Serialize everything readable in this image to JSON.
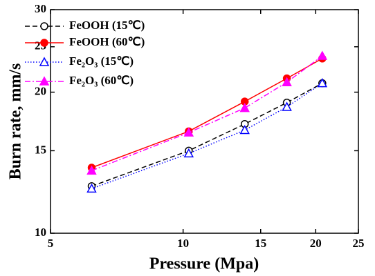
{
  "chart_data": {
    "type": "line",
    "x_label": "Pressure (Mpa)",
    "y_label": "Burn rate, mm/s",
    "x": [
      6.2,
      10.3,
      13.8,
      17.2,
      20.7
    ],
    "xlim": [
      5,
      25
    ],
    "xticks": [
      5,
      10,
      15,
      20,
      25
    ],
    "x_scale": "log",
    "ylim": [
      10,
      30
    ],
    "yticks": [
      10,
      15,
      20,
      25,
      30
    ],
    "y_scale": "log",
    "legend": "upper left",
    "series": [
      {
        "name": "FeOOH (15℃)",
        "color": "#000000",
        "line_style": "dashed",
        "marker": "open-circle",
        "values": [
          12.6,
          15.0,
          17.1,
          19.0,
          20.9
        ]
      },
      {
        "name": "FeOOH (60℃)",
        "color": "#ff0000",
        "line_style": "solid",
        "marker": "filled-circle",
        "values": [
          13.8,
          16.5,
          19.1,
          21.4,
          23.6
        ]
      },
      {
        "name": "Fe₂O₃ (15℃)",
        "color": "#0000ff",
        "line_style": "dotted",
        "marker": "open-triangle",
        "values": [
          12.45,
          14.8,
          16.6,
          18.6,
          20.9
        ]
      },
      {
        "name": "Fe₂O₃ (60℃)",
        "color": "#ff00ff",
        "line_style": "dashdot",
        "marker": "filled-triangle",
        "values": [
          13.6,
          16.4,
          18.5,
          21.0,
          23.9
        ]
      }
    ]
  }
}
